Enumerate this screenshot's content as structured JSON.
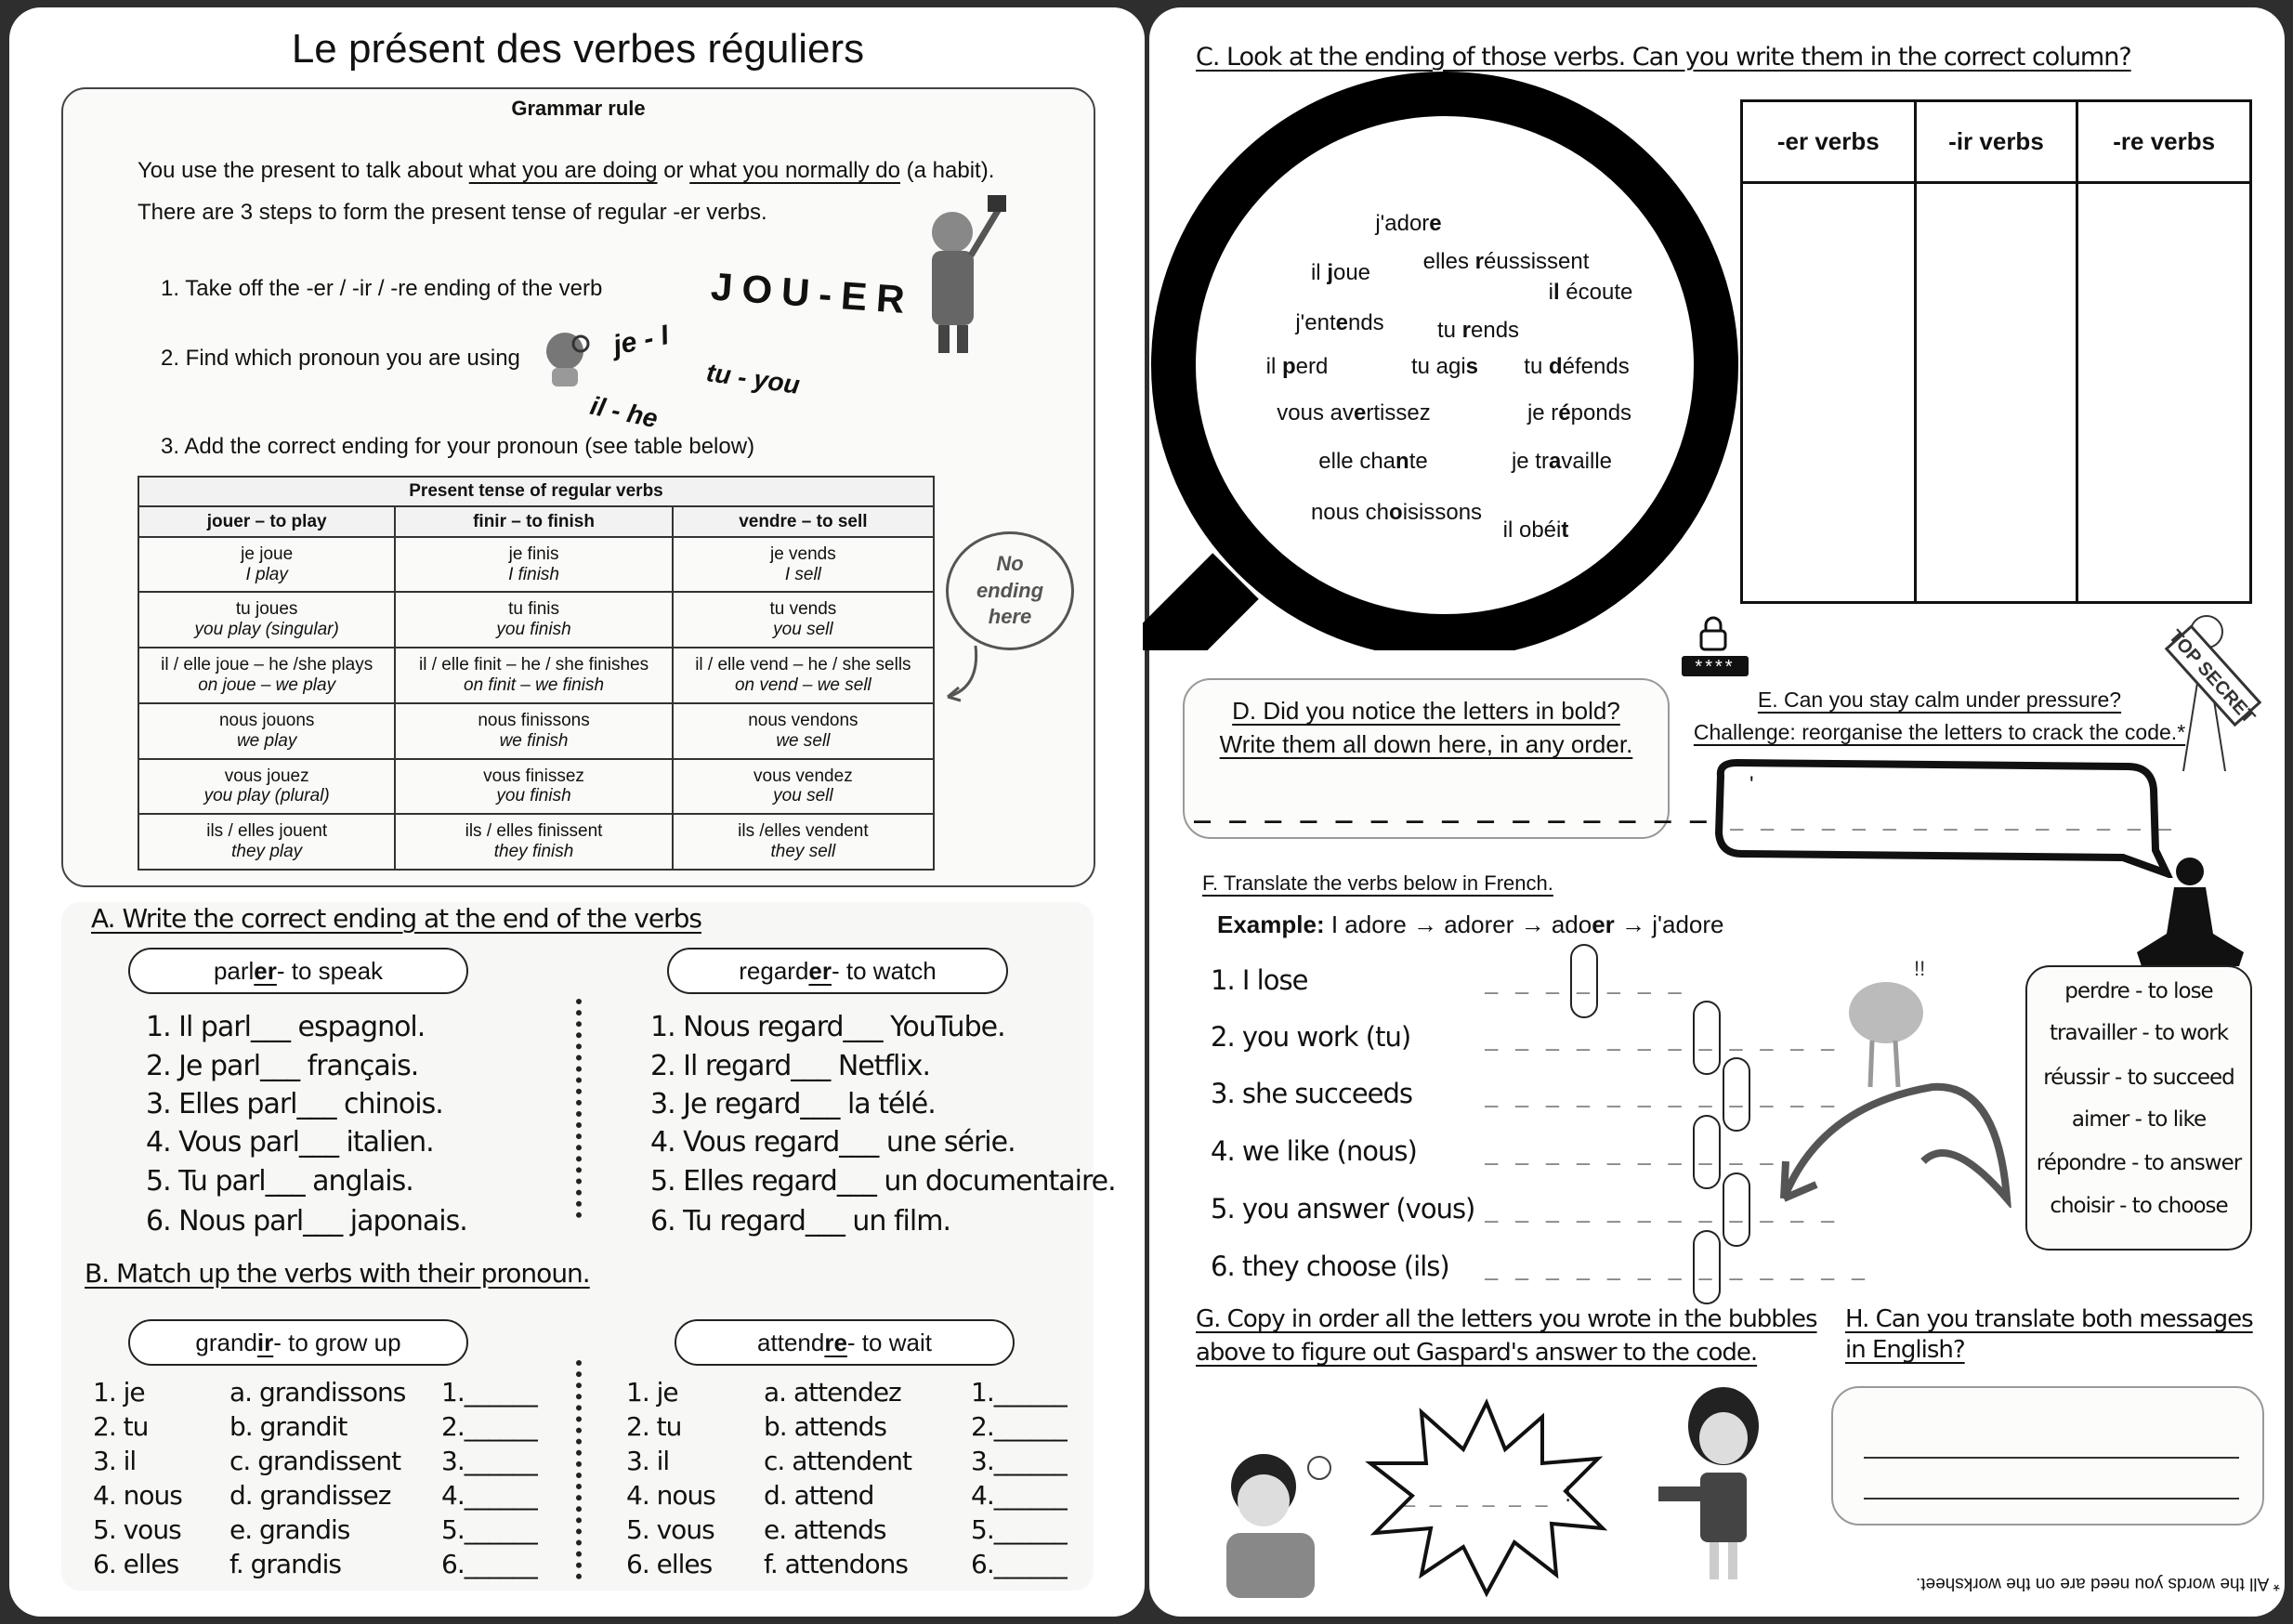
{
  "left": {
    "title": "Le présent des verbes réguliers",
    "grammar": {
      "heading": "Grammar rule",
      "line1_pre": "You use the present to talk about ",
      "line1_u1": "what you are doing",
      "line1_mid": " or ",
      "line1_u2": "what you normally do",
      "line1_post": " (a habit).",
      "line2": "There are 3 steps to form the present tense of regular -er verbs.",
      "steps": [
        "1. Take off the -er / -ir / -re ending of the verb",
        "2. Find which pronoun you are using",
        "3. Add the correct ending for your pronoun (see table below)"
      ],
      "jouer_art": "JOU-ER",
      "pronoun_art": [
        "je - I",
        "tu - you",
        "il - he"
      ],
      "no_ending": "No ending here",
      "table": {
        "title": "Present tense of regular verbs",
        "headers": [
          "jouer – to play",
          "finir – to finish",
          "vendre – to sell"
        ],
        "rows": [
          [
            [
              "je joue",
              "I play"
            ],
            [
              "je finis",
              "I finish"
            ],
            [
              "je vends",
              "I sell"
            ]
          ],
          [
            [
              "tu joues",
              "you play (singular)"
            ],
            [
              "tu finis",
              "you finish"
            ],
            [
              "tu vends",
              "you sell"
            ]
          ],
          [
            [
              "il / elle joue – he /she plays",
              "on joue – we play"
            ],
            [
              "il / elle finit – he / she finishes",
              "on finit – we finish"
            ],
            [
              "il / elle vend – he / she sells",
              "on vend – we sell"
            ]
          ],
          [
            [
              "nous jouons",
              "we play"
            ],
            [
              "nous finissons",
              "we finish"
            ],
            [
              "nous vendons",
              "we sell"
            ]
          ],
          [
            [
              "vous jouez",
              "you play (plural)"
            ],
            [
              "vous finissez",
              "you finish"
            ],
            [
              "vous vendez",
              "you sell"
            ]
          ],
          [
            [
              "ils / elles jouent",
              "they play"
            ],
            [
              "ils / elles finissent",
              "they finish"
            ],
            [
              "ils /elles vendent",
              "they sell"
            ]
          ]
        ]
      }
    },
    "sectionA": {
      "heading": "A. Write the correct ending at the end of the verbs",
      "verb1": {
        "stem": "parl",
        "ending": "er",
        "gloss": " - to speak"
      },
      "verb2": {
        "stem": "regard",
        "ending": "er",
        "gloss": " - to watch"
      },
      "items1": [
        "1. Il parl___ espagnol.",
        "2. Je parl___ français.",
        "3. Elles parl___ chinois.",
        "4. Vous parl___ italien.",
        "5. Tu parl___ anglais.",
        "6. Nous parl___ japonais."
      ],
      "items2": [
        "1. Nous regard___ YouTube.",
        "2. Il regard___ Netflix.",
        "3. Je regard___ la télé.",
        "4. Vous regard___ une série.",
        "5. Elles regard___ un documentaire.",
        "6. Tu regard___ un film."
      ]
    },
    "sectionB": {
      "heading": "B. Match up the verbs with their pronoun.",
      "verb1": {
        "stem": "grand",
        "ending": "ir",
        "gloss": " - to grow up"
      },
      "verb2": {
        "stem": "attend",
        "ending": "re",
        "gloss": " - to wait"
      },
      "pronouns": [
        "1. je",
        "2. tu",
        "3. il",
        "4. nous",
        "5. vous",
        "6. elles"
      ],
      "forms1": [
        "a. grandissons",
        "b. grandit",
        "c. grandissent",
        "d. grandissez",
        "e. grandis",
        "f. grandis"
      ],
      "forms2": [
        "a. attendez",
        "b. attends",
        "c. attendent",
        "d. attend",
        "e. attends",
        "f. attendons"
      ],
      "blanks": [
        "1.______",
        "2.______",
        "3.______",
        "4.______",
        "5.______",
        "6.______"
      ]
    }
  },
  "right": {
    "sectionC": {
      "heading": "C. Look at the ending of those verbs. Can you write them in the correct column?",
      "words": [
        {
          "pre": "j'ador",
          "bold": "e",
          "post": ""
        },
        {
          "pre": "il ",
          "bold": "j",
          "post": "oue"
        },
        {
          "pre": "elles ",
          "bold": "r",
          "post": "éussissent"
        },
        {
          "pre": "i",
          "bold": "l",
          "post": " écoute"
        },
        {
          "pre": "j'ent",
          "bold": "e",
          "post": "nds"
        },
        {
          "pre": "tu ",
          "bold": "r",
          "post": "ends"
        },
        {
          "pre": "il ",
          "bold": "p",
          "post": "erd"
        },
        {
          "pre": "tu agi",
          "bold": "s",
          "post": ""
        },
        {
          "pre": "tu ",
          "bold": "d",
          "post": "éfends"
        },
        {
          "pre": "vous av",
          "bold": "e",
          "post": "rtissez"
        },
        {
          "pre": "je r",
          "bold": "é",
          "post": "ponds"
        },
        {
          "pre": "elle cha",
          "bold": "n",
          "post": "te"
        },
        {
          "pre": "je tr",
          "bold": "a",
          "post": "vaille"
        },
        {
          "pre": "nous ch",
          "bold": "o",
          "post": "isissons"
        },
        {
          "pre": "il obéi",
          "bold": "t",
          "post": ""
        }
      ],
      "columns": [
        "-er verbs",
        "-ir verbs",
        "-re verbs"
      ]
    },
    "lock": {
      "code": "****"
    },
    "sectionD": {
      "line1": "D. Did you notice the letters in bold?",
      "line2": "Write them all down here, in any order.",
      "blanks": "_ _ _ _ _ _ _ _ _ _ _ _ _ _ _"
    },
    "sectionE": {
      "line1": "E. Can you stay calm under pressure?",
      "line2": "Challenge: reorganise the letters to crack the code.*",
      "apostrophe": "'",
      "blanks": "_ _ _ _ _ _   _ _   _ _ _ _ _ _ _",
      "stamp": "TOP SECRET"
    },
    "sectionF": {
      "heading": "F. Translate the verbs below in French.",
      "example_label": "Example:",
      "example_1": " I adore → adorer → ado",
      "example_bold": "er",
      "example_2": " → j'adore",
      "items": [
        {
          "label": "1. I lose",
          "blanks": "_ _   _ _ _ _ _",
          "circle": 0
        },
        {
          "label": "2. you work (tu)",
          "blanks": "_ _   _ _ _ _ _ _ _ _ _ _",
          "circle": 4
        },
        {
          "label": "3. she succeeds",
          "blanks": "_ _ _ _   _ _ _ _ _ _ _ _",
          "circle": 3
        },
        {
          "label": "4. we like (nous)",
          "blanks": "_ _ _ _   _ _ _ _ _ _",
          "circle": 2
        },
        {
          "label": "5. you answer (vous)",
          "blanks": "_ _ _ _   _ _ _ _ _ _ _ _",
          "circle": 3
        },
        {
          "label": "6. they choose (ils)",
          "blanks": "_ _ _   _ _ _ _ _ _ _ _ _ _",
          "circle": 3
        }
      ],
      "vocab": [
        "perdre - to lose",
        "travailler - to work",
        "réussir - to succeed",
        "aimer - to like",
        "répondre - to answer",
        "choisir - to choose"
      ]
    },
    "sectionG": {
      "line1": "G. Copy in order all the letters you wrote in the bubbles",
      "line2": "above to figure out Gaspard's answer to the code.",
      "blanks": "_ _ _   _ _ _ !"
    },
    "sectionH": {
      "line1": "H. Can you translate both messages",
      "line2": "in English?"
    },
    "footnote": "* All the words you need are on the worksheet."
  }
}
